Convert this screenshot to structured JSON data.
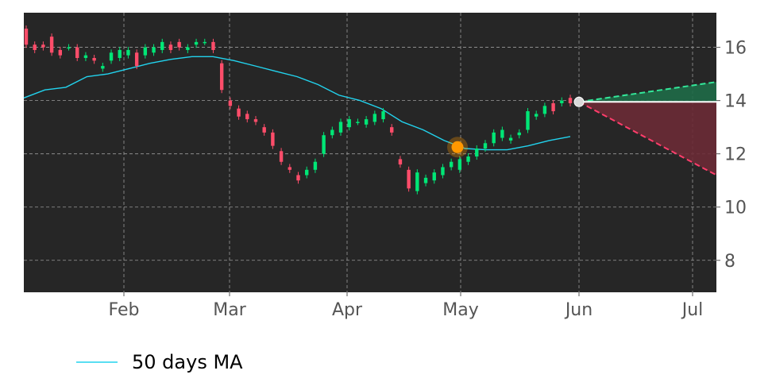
{
  "chart_data": {
    "type": "candlestick",
    "title": "",
    "xlabel": "",
    "ylabel": "",
    "ylim": [
      6.8,
      17.3
    ],
    "y_ticks": [
      "8",
      "10",
      "12",
      "14",
      "16"
    ],
    "x_ticks": [
      "Feb",
      "Mar",
      "Apr",
      "May",
      "Jun",
      "Jul"
    ],
    "grid": true,
    "background": "#262626",
    "colors": {
      "up": "#00e676",
      "down": "#ff4d6a",
      "ma": "#22d3ee",
      "marker": "#ff9800",
      "current": "#d9d9d9",
      "bull_band": "#1f6b48",
      "bear_band": "#6b2b36",
      "bull_line": "#33e89a",
      "bear_line": "#ff3d6b"
    },
    "legend": {
      "position": "bottom-left",
      "entries": [
        "50 days MA"
      ]
    },
    "series": [
      {
        "name": "50 days MA",
        "type": "line",
        "values": [
          14.1,
          14.4,
          14.5,
          14.9,
          15.0,
          15.2,
          15.4,
          15.55,
          15.65,
          15.65,
          15.5,
          15.3,
          15.1,
          14.9,
          14.6,
          14.2,
          14.0,
          13.7,
          13.2,
          12.9,
          12.5,
          12.2,
          12.15,
          12.15,
          12.3,
          12.5,
          12.65
        ]
      },
      {
        "name": "",
        "type": "candles",
        "values": [
          [
            16.7,
            16.1
          ],
          [
            16.1,
            15.9
          ],
          [
            16.1,
            16.0
          ],
          [
            16.4,
            15.8
          ],
          [
            15.9,
            15.7
          ],
          [
            16.0,
            16.0
          ],
          [
            16.0,
            15.6
          ],
          [
            15.6,
            15.7
          ],
          [
            15.6,
            15.5
          ],
          [
            15.2,
            15.3
          ],
          [
            15.5,
            15.8
          ],
          [
            15.6,
            15.9
          ],
          [
            15.7,
            15.9
          ],
          [
            15.8,
            15.3
          ],
          [
            15.7,
            16.0
          ],
          [
            15.8,
            16.0
          ],
          [
            15.9,
            16.2
          ],
          [
            16.1,
            15.9
          ],
          [
            16.2,
            16.0
          ],
          [
            15.9,
            16.0
          ],
          [
            16.1,
            16.2
          ],
          [
            16.2,
            16.2
          ],
          [
            16.2,
            15.9
          ],
          [
            15.4,
            14.4
          ],
          [
            14.0,
            13.8
          ],
          [
            13.7,
            13.4
          ],
          [
            13.5,
            13.3
          ],
          [
            13.3,
            13.2
          ],
          [
            13.0,
            12.8
          ],
          [
            12.8,
            12.3
          ],
          [
            12.1,
            11.7
          ],
          [
            11.5,
            11.4
          ],
          [
            11.2,
            11.0
          ],
          [
            11.2,
            11.4
          ],
          [
            11.4,
            11.7
          ],
          [
            12.0,
            12.7
          ],
          [
            12.7,
            12.9
          ],
          [
            12.8,
            13.2
          ],
          [
            13.0,
            13.3
          ],
          [
            13.2,
            13.2
          ],
          [
            13.1,
            13.3
          ],
          [
            13.2,
            13.5
          ],
          [
            13.3,
            13.6
          ],
          [
            13.0,
            12.8
          ],
          [
            11.8,
            11.6
          ],
          [
            11.4,
            10.7
          ],
          [
            10.6,
            11.3
          ],
          [
            10.9,
            11.1
          ],
          [
            11.0,
            11.3
          ],
          [
            11.2,
            11.5
          ],
          [
            11.5,
            11.7
          ],
          [
            11.4,
            11.8
          ],
          [
            11.7,
            11.9
          ],
          [
            11.9,
            12.2
          ],
          [
            12.2,
            12.4
          ],
          [
            12.4,
            12.8
          ],
          [
            12.6,
            12.9
          ],
          [
            12.5,
            12.6
          ],
          [
            12.7,
            12.8
          ],
          [
            12.9,
            13.6
          ],
          [
            13.4,
            13.5
          ],
          [
            13.5,
            13.8
          ],
          [
            13.9,
            13.6
          ],
          [
            13.9,
            14.0
          ],
          [
            14.1,
            13.9
          ]
        ]
      }
    ],
    "events": [
      {
        "label": "",
        "x": "May",
        "y": 12.25
      }
    ],
    "forecast": {
      "start": {
        "x": "Jun",
        "y": 13.95
      },
      "end_high": 14.7,
      "end_flat": 13.95,
      "end_low": 11.2
    }
  }
}
